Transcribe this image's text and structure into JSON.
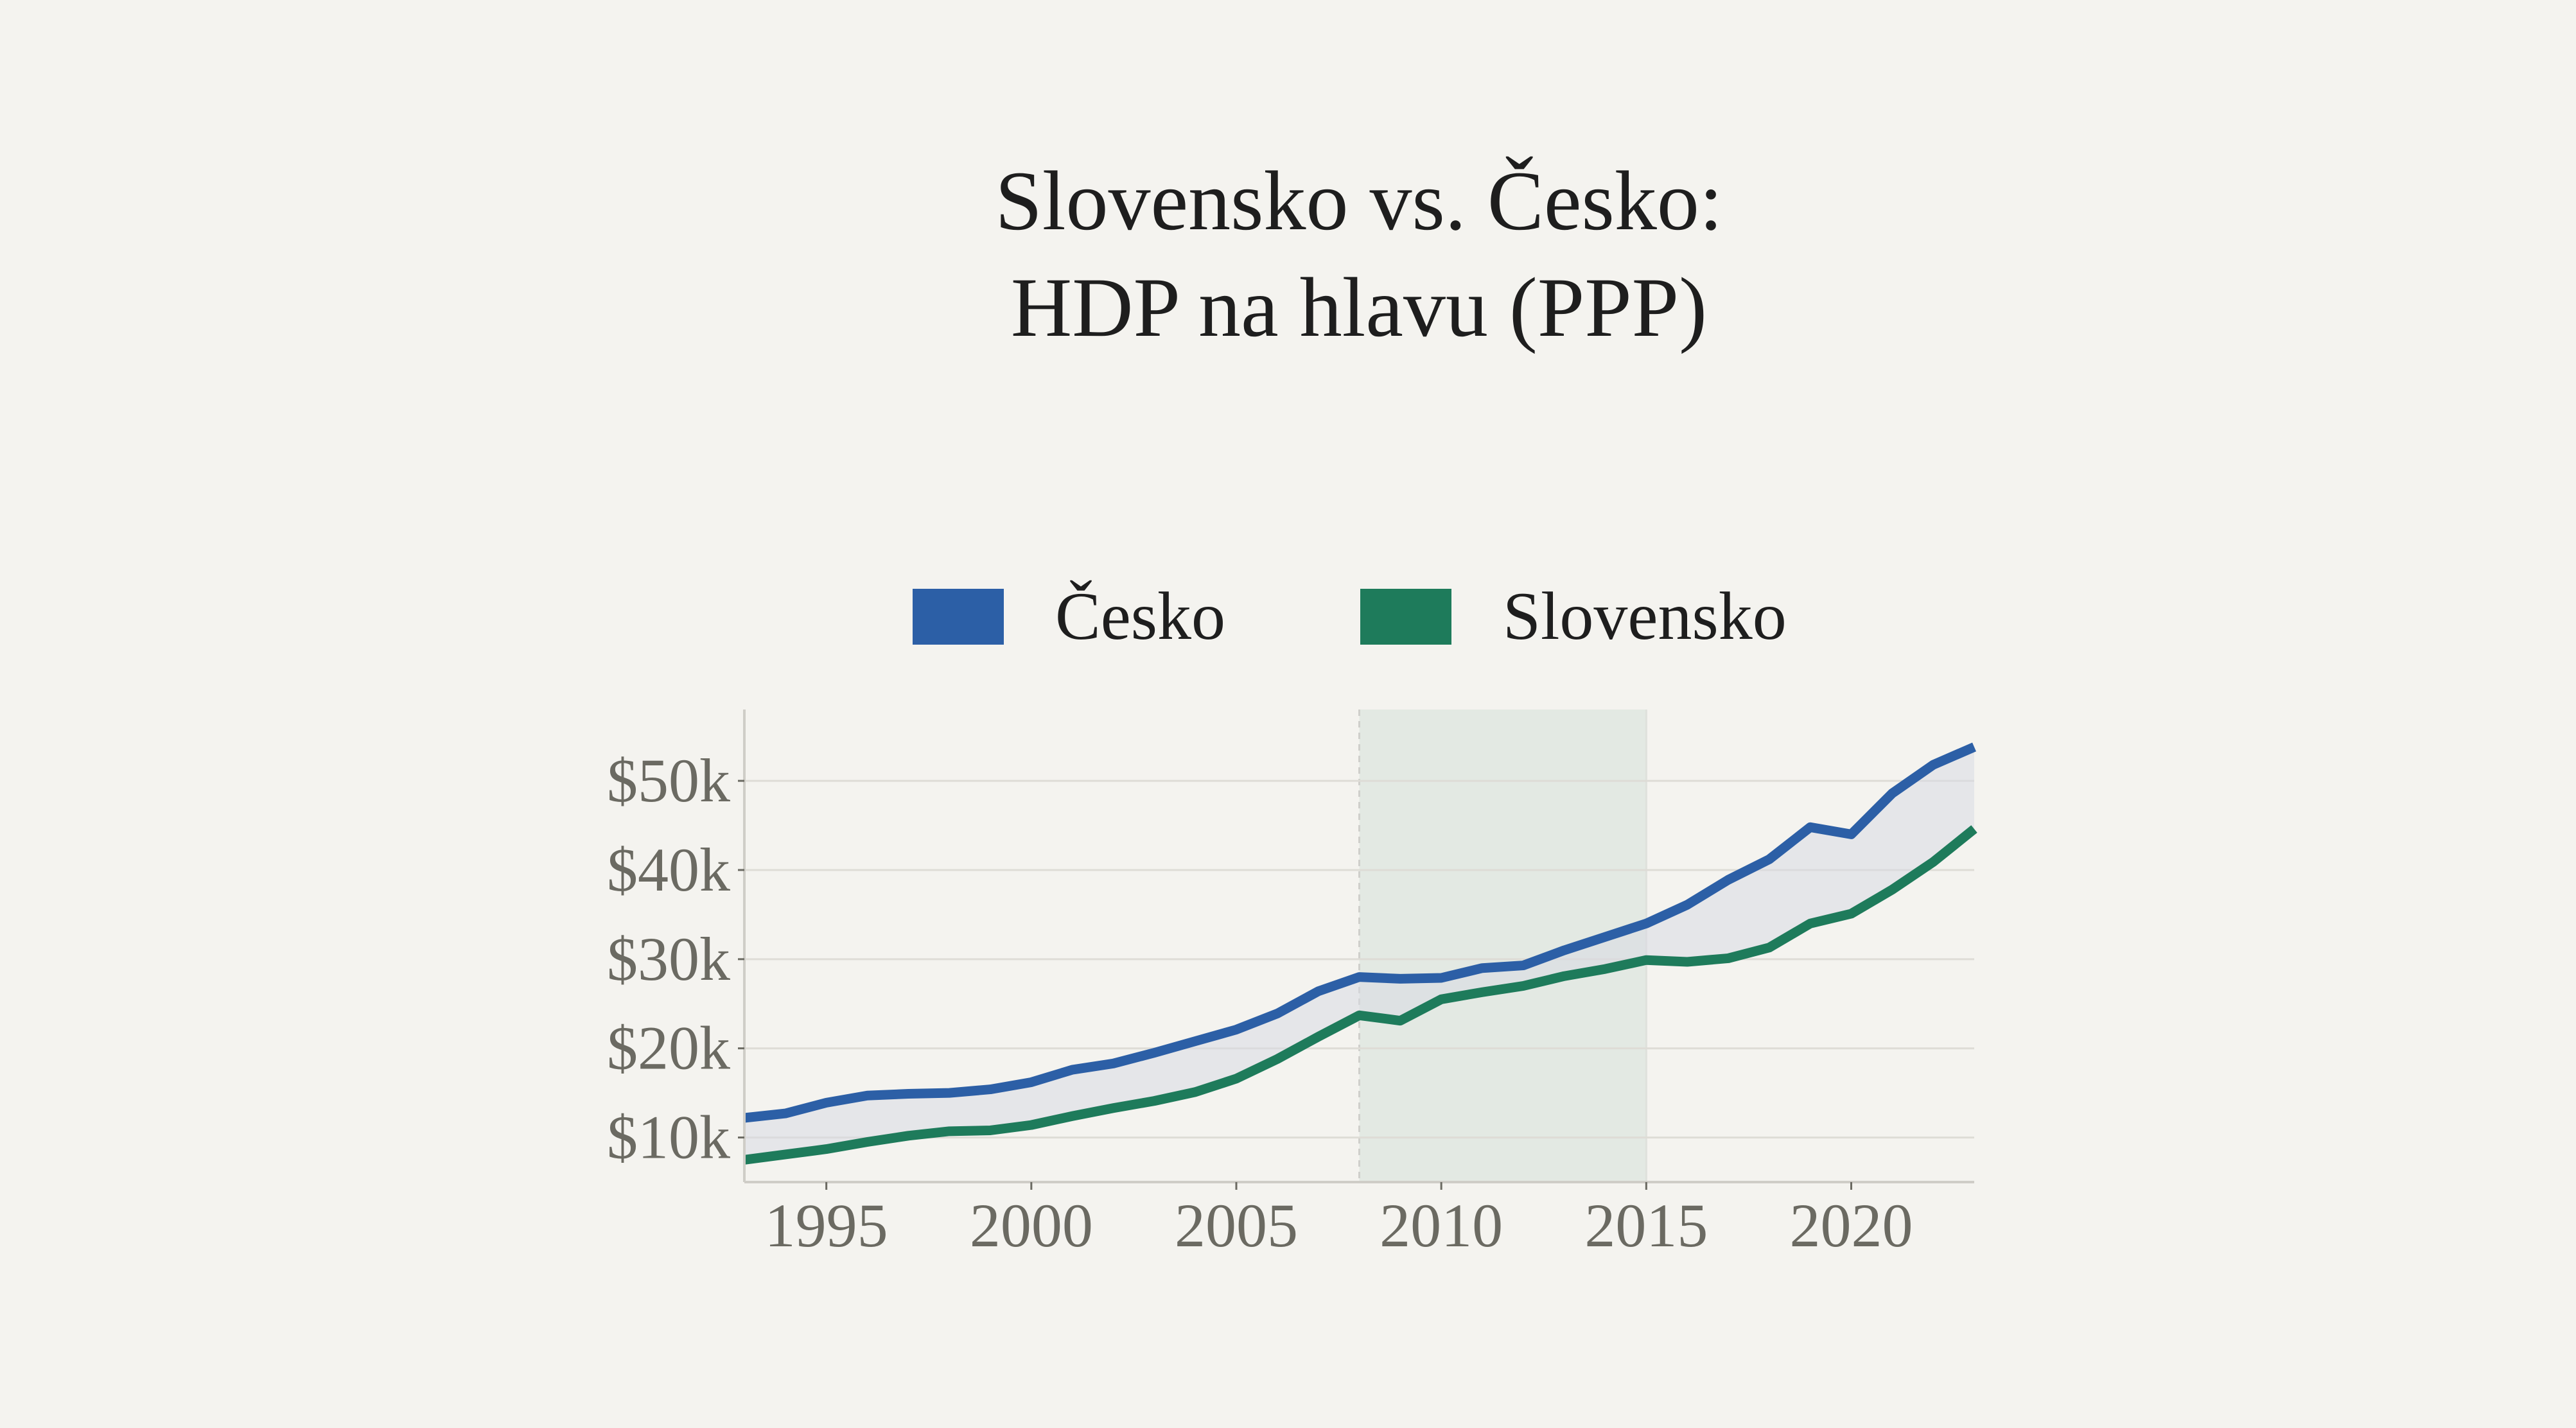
{
  "title": {
    "line1": "Slovensko vs. Česko:",
    "line2": "HDP na hlavu (PPP)"
  },
  "legend": [
    {
      "label": "Česko",
      "color": "#2c5fa6"
    },
    {
      "label": "Slovensko",
      "color": "#1e7b5b"
    }
  ],
  "colors": {
    "background": "#f4f3ef",
    "gap_fill": "#e6e7ea",
    "highlight_band": "#e3e9e3",
    "grid": "#dedcd6",
    "axis": "#cfcdc7",
    "tick_text": "#6b6a62"
  },
  "chart_data": {
    "type": "line",
    "title": "Slovensko vs. Česko: HDP na hlavu (PPP)",
    "xlabel": "",
    "ylabel": "",
    "x": [
      1993,
      1994,
      1995,
      1996,
      1997,
      1998,
      1999,
      2000,
      2001,
      2002,
      2003,
      2004,
      2005,
      2006,
      2007,
      2008,
      2009,
      2010,
      2011,
      2012,
      2013,
      2014,
      2015,
      2016,
      2017,
      2018,
      2019,
      2020,
      2021,
      2022,
      2023
    ],
    "series": [
      {
        "name": "Česko",
        "color": "#2c5fa6",
        "values": [
          12.2,
          12.7,
          13.9,
          14.7,
          14.9,
          15.0,
          15.4,
          16.2,
          17.6,
          18.3,
          19.5,
          20.8,
          22.1,
          23.9,
          26.4,
          28.0,
          27.8,
          27.9,
          29.0,
          29.3,
          31.0,
          32.5,
          34.0,
          36.1,
          38.9,
          41.2,
          44.8,
          44.0,
          48.6,
          51.8,
          53.8
        ]
      },
      {
        "name": "Slovensko",
        "color": "#1e7b5b",
        "values": [
          7.5,
          8.1,
          8.7,
          9.5,
          10.2,
          10.7,
          10.8,
          11.4,
          12.4,
          13.3,
          14.1,
          15.1,
          16.6,
          18.8,
          21.3,
          23.7,
          23.1,
          25.5,
          26.3,
          27.0,
          28.1,
          28.9,
          29.9,
          29.7,
          30.1,
          31.3,
          34.0,
          35.1,
          37.8,
          40.9,
          44.6
        ]
      }
    ],
    "units": "thousand USD (PPP) per capita",
    "ylim": [
      5,
      58
    ],
    "xlim": [
      1993,
      2023
    ],
    "yticks": [
      10,
      20,
      30,
      40,
      50
    ],
    "ytick_labels": [
      "$10k",
      "$20k",
      "$30k",
      "$40k",
      "$50k"
    ],
    "xticks": [
      1995,
      2000,
      2005,
      2010,
      2015,
      2020
    ],
    "xtick_labels": [
      "1995",
      "2000",
      "2005",
      "2010",
      "2015",
      "2020"
    ],
    "highlight_range": [
      2008,
      2015
    ],
    "gap_shaded": true,
    "grid": "horizontal",
    "legend_position": "top-center"
  }
}
